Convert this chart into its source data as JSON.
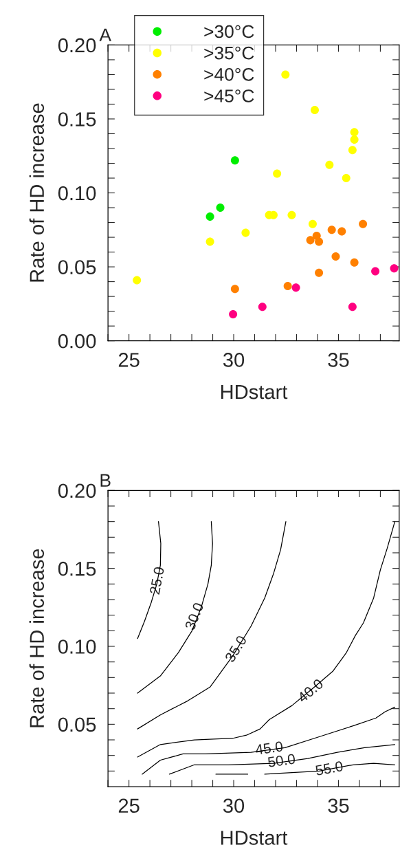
{
  "chart_data": [
    {
      "type": "scatter",
      "title": "A",
      "xlabel": "HDstart",
      "ylabel": "Rate of HD increase",
      "marker": "circle",
      "legend": "top left",
      "grid": false,
      "xlim": [
        24,
        37.9
      ],
      "ylim": [
        0,
        0.2
      ],
      "xticks": [
        {
          "value": 24,
          "label": null
        },
        25,
        {
          "value": 26,
          "label": null
        },
        {
          "value": 27,
          "label": null
        },
        {
          "value": 28,
          "label": null
        },
        {
          "value": 29,
          "label": null
        },
        30,
        {
          "value": 31,
          "label": null
        },
        {
          "value": 32,
          "label": null
        },
        {
          "value": 33,
          "label": null
        },
        {
          "value": 34,
          "label": null
        },
        35,
        {
          "value": 36,
          "label": null
        },
        {
          "value": 37,
          "label": null
        }
      ],
      "yticks": [
        {
          "value": 0,
          "label": "0.00"
        },
        {
          "value": 0.01,
          "label": null
        },
        {
          "value": 0.02,
          "label": null
        },
        {
          "value": 0.03,
          "label": null
        },
        {
          "value": 0.04,
          "label": null
        },
        {
          "value": 0.05,
          "label": "0.05"
        },
        {
          "value": 0.06,
          "label": null
        },
        {
          "value": 0.07,
          "label": null
        },
        {
          "value": 0.08,
          "label": null
        },
        {
          "value": 0.09,
          "label": null
        },
        {
          "value": 0.1,
          "label": "0.10"
        },
        {
          "value": 0.11,
          "label": null
        },
        {
          "value": 0.12,
          "label": null
        },
        {
          "value": 0.13,
          "label": null
        },
        {
          "value": 0.14,
          "label": null
        },
        {
          "value": 0.15,
          "label": "0.15"
        },
        {
          "value": 0.16,
          "label": null
        },
        {
          "value": 0.17,
          "label": null
        },
        {
          "value": 0.18,
          "label": null
        },
        {
          "value": 0.19,
          "label": null
        },
        {
          "value": 0.2,
          "label": "0.20"
        }
      ],
      "series": [
        {
          "name": ">30°C",
          "color": "#00ee00",
          "x": [
            30.06,
            29.36,
            28.87
          ],
          "values": [
            0.122,
            0.09,
            0.084
          ]
        },
        {
          "name": ">35°C",
          "color": "#ffff00",
          "x": [
            32.47,
            33.87,
            35.76,
            35.76,
            35.67,
            34.57,
            32.07,
            35.37,
            31.69,
            31.9,
            32.77,
            33.77,
            30.57,
            28.87,
            25.38
          ],
          "values": [
            0.18,
            0.156,
            0.141,
            0.136,
            0.129,
            0.119,
            0.113,
            0.11,
            0.085,
            0.085,
            0.085,
            0.079,
            0.073,
            0.067,
            0.041
          ]
        },
        {
          "name": ">40°C",
          "color": "#ff8000",
          "x": [
            36.17,
            34.68,
            35.16,
            33.96,
            33.66,
            34.07,
            34.87,
            35.76,
            34.07,
            30.06,
            32.58
          ],
          "values": [
            0.079,
            0.075,
            0.074,
            0.071,
            0.068,
            0.067,
            0.057,
            0.053,
            0.046,
            0.035,
            0.037
          ]
        },
        {
          "name": ">45°C",
          "color": "#ff0080",
          "x": [
            37.66,
            36.76,
            32.97,
            31.37,
            35.67,
            29.97
          ],
          "values": [
            0.049,
            0.047,
            0.036,
            0.023,
            0.023,
            0.018
          ]
        }
      ]
    },
    {
      "type": "line",
      "title": "B",
      "xlabel": "HDstart",
      "ylabel": "Rate of HD increase",
      "marker": "none",
      "line_style": "solid",
      "grid": false,
      "xlim": [
        24,
        37.9
      ],
      "ylim": [
        0.01,
        0.2
      ],
      "xticks": [
        {
          "value": 24,
          "label": null
        },
        25,
        {
          "value": 26,
          "label": null
        },
        {
          "value": 27,
          "label": null
        },
        {
          "value": 28,
          "label": null
        },
        {
          "value": 29,
          "label": null
        },
        30,
        {
          "value": 31,
          "label": null
        },
        {
          "value": 32,
          "label": null
        },
        {
          "value": 33,
          "label": null
        },
        {
          "value": 34,
          "label": null
        },
        35,
        {
          "value": 36,
          "label": null
        },
        {
          "value": 37,
          "label": null
        }
      ],
      "yticks": [
        {
          "value": 0.02,
          "label": null
        },
        {
          "value": 0.03,
          "label": null
        },
        {
          "value": 0.04,
          "label": null
        },
        {
          "value": 0.05,
          "label": "0.05"
        },
        {
          "value": 0.06,
          "label": null
        },
        {
          "value": 0.07,
          "label": null
        },
        {
          "value": 0.08,
          "label": null
        },
        {
          "value": 0.09,
          "label": null
        },
        {
          "value": 0.1,
          "label": "0.10"
        },
        {
          "value": 0.11,
          "label": null
        },
        {
          "value": 0.12,
          "label": null
        },
        {
          "value": 0.13,
          "label": null
        },
        {
          "value": 0.14,
          "label": null
        },
        {
          "value": 0.15,
          "label": "0.15"
        },
        {
          "value": 0.16,
          "label": null
        },
        {
          "value": 0.17,
          "label": null
        },
        {
          "value": 0.18,
          "label": null
        },
        {
          "value": 0.19,
          "label": null
        },
        {
          "value": 0.2,
          "label": "0.20"
        }
      ],
      "series": [
        {
          "color": "#000000",
          "x": [
            26.41,
            26.52,
            26.5,
            26.33,
            26.06,
            25.74,
            25.41
          ],
          "values": [
            0.18,
            0.166,
            0.152,
            0.14,
            0.128,
            0.116,
            0.105
          ]
        },
        {
          "color": "#000000",
          "x": [
            28.93,
            28.99,
            28.93,
            28.77,
            28.45,
            28.01,
            27.36,
            26.5,
            25.41
          ],
          "values": [
            0.18,
            0.166,
            0.152,
            0.14,
            0.125,
            0.11,
            0.096,
            0.081,
            0.07
          ]
        },
        {
          "color": "#000000",
          "x": [
            32.49,
            32.24,
            31.91,
            31.48,
            30.83,
            29.96,
            28.88,
            27.8,
            26.5,
            25.41
          ],
          "values": [
            0.18,
            0.162,
            0.147,
            0.131,
            0.113,
            0.094,
            0.074,
            0.065,
            0.056,
            0.047
          ]
        },
        {
          "color": "#000000",
          "x": [
            37.69,
            37.33,
            37.0,
            36.68,
            36.19,
            35.81,
            35.38,
            34.73,
            33.86,
            32.78,
            31.7,
            31.26,
            30.61,
            29.96,
            28.12,
            26.5,
            25.41
          ],
          "values": [
            0.18,
            0.163,
            0.149,
            0.131,
            0.115,
            0.107,
            0.096,
            0.084,
            0.074,
            0.062,
            0.053,
            0.047,
            0.043,
            0.041,
            0.04,
            0.037,
            0.029
          ]
        },
        {
          "color": "#000000",
          "x": [
            37.69,
            37.22,
            36.79,
            35.7,
            34.08,
            32.45,
            30.83,
            28.66,
            27.58,
            26.5,
            25.63
          ],
          "values": [
            0.061,
            0.058,
            0.054,
            0.049,
            0.042,
            0.035,
            0.032,
            0.031,
            0.031,
            0.027,
            0.018
          ]
        },
        {
          "color": "#000000",
          "x": [
            37.69,
            36.25,
            34.95,
            33.54,
            31.91,
            29.75,
            28.12,
            26.93
          ],
          "values": [
            0.037,
            0.035,
            0.032,
            0.028,
            0.025,
            0.024,
            0.024,
            0.018
          ]
        },
        {
          "color": "#000000",
          "x": [
            37.69,
            36.68,
            35.7,
            34.08,
            31.48,
            31.0,
            30.67,
            29.15
          ],
          "values": [
            0.024,
            0.025,
            0.024,
            0.02,
            0.018,
            null,
            0.018,
            0.018
          ]
        }
      ],
      "annotations": [
        {
          "text": "25.0",
          "x": 26.39,
          "y": 0.142
        },
        {
          "text": "30.0",
          "x": 28.17,
          "y": 0.119
        },
        {
          "text": "35.0",
          "x": 30.15,
          "y": 0.098
        },
        {
          "text": "40.0",
          "x": 33.7,
          "y": 0.071
        },
        {
          "text": "45.0",
          "x": 31.7,
          "y": 0.034
        },
        {
          "text": "50.0",
          "x": 32.29,
          "y": 0.026
        },
        {
          "text": "55.0",
          "x": 34.57,
          "y": 0.021
        }
      ]
    }
  ]
}
